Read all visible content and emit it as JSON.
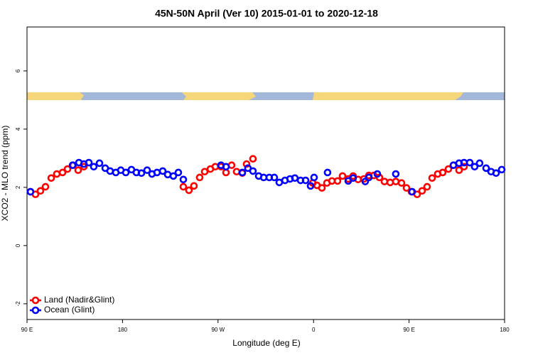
{
  "chart_data": {
    "type": "scatter",
    "title": "45N-50N April (Ver 10)   2015-01-01 to 2020-12-18",
    "x_label": "Longitude (deg E)",
    "y_label": "XCO2 - MLO trend (ppm)",
    "xlim": [
      90,
      540
    ],
    "ylim": [
      -2.54,
      7.51
    ],
    "xticks": [
      {
        "value": 90,
        "label": "90 E"
      },
      180,
      {
        "value": 270,
        "label": "90 W"
      },
      {
        "value": 360,
        "label": "0"
      },
      {
        "value": 450,
        "label": "90 E"
      },
      {
        "value": 540,
        "label": "180"
      }
    ],
    "yticks": [
      -2,
      0,
      2,
      4,
      6
    ],
    "legend": "bottom-left",
    "series": [
      {
        "name": "Land (Nadir&Glint)",
        "color": "#ff0000",
        "x": [
          93.3,
          98.0,
          102.7,
          107.4,
          112.8,
          118.1,
          123.5,
          128.2,
          133.5,
          138.2,
          143.6,
          237.3,
          242.6,
          247.3,
          252.7,
          257.4,
          262.8,
          267.4,
          272.8,
          277.5,
          282.8,
          287.5,
          292.9,
          296.9,
          302.9,
          359.2,
          363.2,
          367.9,
          372.6,
          377.3,
          382.6,
          387.3,
          392.7,
          397.3,
          402.0,
          407.4,
          412.1,
          416.8,
          422.1,
          426.8,
          432.2,
          437.5,
          442.9,
          447.6,
          452.3,
          457.6,
          462.3,
          467.0,
          471.7,
          477.0,
          481.7,
          487.1,
          491.8,
          497.1,
          501.8
        ],
        "values": [
          1.85,
          1.76,
          1.88,
          2.02,
          2.32,
          2.46,
          2.51,
          2.63,
          2.76,
          2.59,
          2.71,
          2.02,
          1.9,
          2.05,
          2.34,
          2.54,
          2.63,
          2.71,
          2.71,
          2.51,
          2.76,
          2.54,
          2.49,
          2.8,
          2.98,
          2.15,
          2.07,
          1.98,
          2.15,
          2.22,
          2.22,
          2.39,
          2.29,
          2.39,
          2.27,
          2.29,
          2.41,
          2.41,
          2.34,
          2.2,
          2.17,
          2.2,
          2.15,
          1.98,
          1.85,
          1.76,
          1.88,
          2.02,
          2.32,
          2.46,
          2.51,
          2.63,
          2.76,
          2.59,
          2.71
        ]
      },
      {
        "name": "Ocean (Glint)",
        "color": "#0000ff",
        "x": [
          93.3,
          132.9,
          138.9,
          143.6,
          148.3,
          152.9,
          158.3,
          163.7,
          168.3,
          173.7,
          178.4,
          183.1,
          188.4,
          193.1,
          197.8,
          203.2,
          207.8,
          212.5,
          217.9,
          222.6,
          227.9,
          232.6,
          237.3,
          272.8,
          277.5,
          292.9,
          298.2,
          302.9,
          308.3,
          313.0,
          318.3,
          323.0,
          327.7,
          333.1,
          337.8,
          342.4,
          347.8,
          352.5,
          357.2,
          360.5,
          373.2,
          392.7,
          397.3,
          408.7,
          412.1,
          420.1,
          437.5,
          452.9,
          491.8,
          497.1,
          501.8,
          507.2,
          511.8,
          516.5,
          522.6,
          527.3,
          532.0,
          537.3
        ],
        "values": [
          1.85,
          2.76,
          2.85,
          2.8,
          2.85,
          2.71,
          2.83,
          2.66,
          2.56,
          2.51,
          2.59,
          2.51,
          2.61,
          2.51,
          2.49,
          2.59,
          2.46,
          2.51,
          2.56,
          2.44,
          2.39,
          2.51,
          2.27,
          2.76,
          2.71,
          2.51,
          2.66,
          2.56,
          2.39,
          2.34,
          2.34,
          2.34,
          2.17,
          2.24,
          2.29,
          2.32,
          2.24,
          2.24,
          2.05,
          2.34,
          2.51,
          2.22,
          2.32,
          2.2,
          2.34,
          2.46,
          2.46,
          1.85,
          2.76,
          2.83,
          2.85,
          2.85,
          2.71,
          2.83,
          2.66,
          2.54,
          2.49,
          2.61
        ]
      }
    ]
  }
}
